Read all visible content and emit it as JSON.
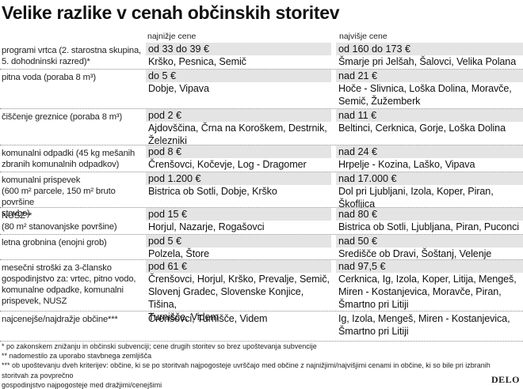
{
  "title": "Velike razlike v cenah občinskih storitev",
  "columns": {
    "low": "najnižje cene",
    "high": "najvišje cene"
  },
  "rows": [
    {
      "label": [
        "programi vrtca (2. starostna skupina,",
        "5. dohodninski razred)*"
      ],
      "low_price": "od 33 do 39 €",
      "low_places": [
        "Krško, Pesnica, Semič"
      ],
      "high_price": "od 160 do 173 €",
      "high_places": [
        "Šmarje pri Jelšah, Šalovci, Velika Polana"
      ]
    },
    {
      "label": [
        "pitna voda (poraba 8 m³)"
      ],
      "low_price": "do 5 €",
      "low_places": [
        "Dobje, Vipava"
      ],
      "high_price": "nad 21 €",
      "high_places": [
        "Hoče - Slivnica, Loška Dolina, Moravče,",
        "Semič, Žužemberk"
      ]
    },
    {
      "label": [
        "čiščenje greznice (poraba 8 m³)"
      ],
      "low_price": "pod 2 €",
      "low_places": [
        "Ajdovščina, Črna na Koroškem, Destrnik,",
        "Železniki"
      ],
      "high_price": "nad 11 €",
      "high_places": [
        "Beltinci, Cerknica, Gorje, Loška Dolina"
      ]
    },
    {
      "label": [
        "komunalni odpadki (45 kg mešanih",
        "zbranih komunalnih odpadkov)"
      ],
      "low_price": "pod 8 €",
      "low_places": [
        "Črenšovci, Kočevje, Log - Dragomer"
      ],
      "high_price": "nad 24 €",
      "high_places": [
        "Hrpelje - Kozina, Laško, Vipava"
      ]
    },
    {
      "label": [
        "komunalni prispevek",
        "(600 m² parcele, 150 m² bruto površine",
        "stavbe)"
      ],
      "low_price": "pod 1.200 €",
      "low_places": [
        "Bistrica ob Sotli, Dobje, Krško"
      ],
      "high_price": "nad 17.000 €",
      "high_places": [
        "Dol pri Ljubljani, Izola, Koper, Piran,",
        "Škofljica"
      ]
    },
    {
      "label": [
        "NUSZ**",
        "(80 m² stanovanjske površine)"
      ],
      "low_price": "pod 15 €",
      "low_places": [
        "Horjul, Nazarje, Rogašovci"
      ],
      "high_price": "nad 80 €",
      "high_places": [
        "Bistrica ob Sotli, Ljubljana, Piran, Puconci"
      ]
    },
    {
      "label": [
        "letna grobnina (enojni grob)"
      ],
      "low_price": "pod 5 €",
      "low_places": [
        "Polzela, Štore"
      ],
      "high_price": "nad 50 €",
      "high_places": [
        "Središče ob Dravi, Šoštanj, Velenje"
      ]
    },
    {
      "label": [
        "mesečni stroški za 3-člansko",
        "gospodinjstvo za: vrtec, pitno vodo,",
        "komunalne odpadke, komunalni",
        "prispevek, NUSZ"
      ],
      "low_price": "pod 61 €",
      "low_places": [
        "Črenšovci, Horjul, Krško, Prevalje, Semič,",
        "Slovenj Gradec, Slovenske Konjice, Tišina,",
        "Turnišče, Videm"
      ],
      "high_price": "nad 97,5 €",
      "high_places": [
        "Cerknica, Ig, Izola, Koper, Litija, Mengeš,",
        "Miren - Kostanjevica, Moravče, Piran,",
        "Šmartno pri Litiji"
      ]
    },
    {
      "label": [
        "najcenejše/najdražje občine***"
      ],
      "low_price": "",
      "low_places": [
        "Črenšovci, Turnišče, Videm"
      ],
      "high_price": "",
      "high_places": [
        "Ig, Izola, Mengeš, Miren - Kostanjevica,",
        "Šmartno pri Litiji"
      ]
    }
  ],
  "notes": [
    "* po zakonskem znižanju in občinski subvenciji; cene drugih storitev so brez upoštevanja subvencije",
    "** nadomestilo za uporabo stavbnega zemljišča",
    "*** ob upoštevanju dveh kriterijev: občine, ki se po storitvah najpogosteje uvrščajo med občine z najnižjimi/najvišjimi cenami in občine, ki so bile pri izbranih storitvah za povprečno",
    "gospodinjstvo najpogosteje med dražjimi/cenejšimi"
  ],
  "logo": "DELO"
}
